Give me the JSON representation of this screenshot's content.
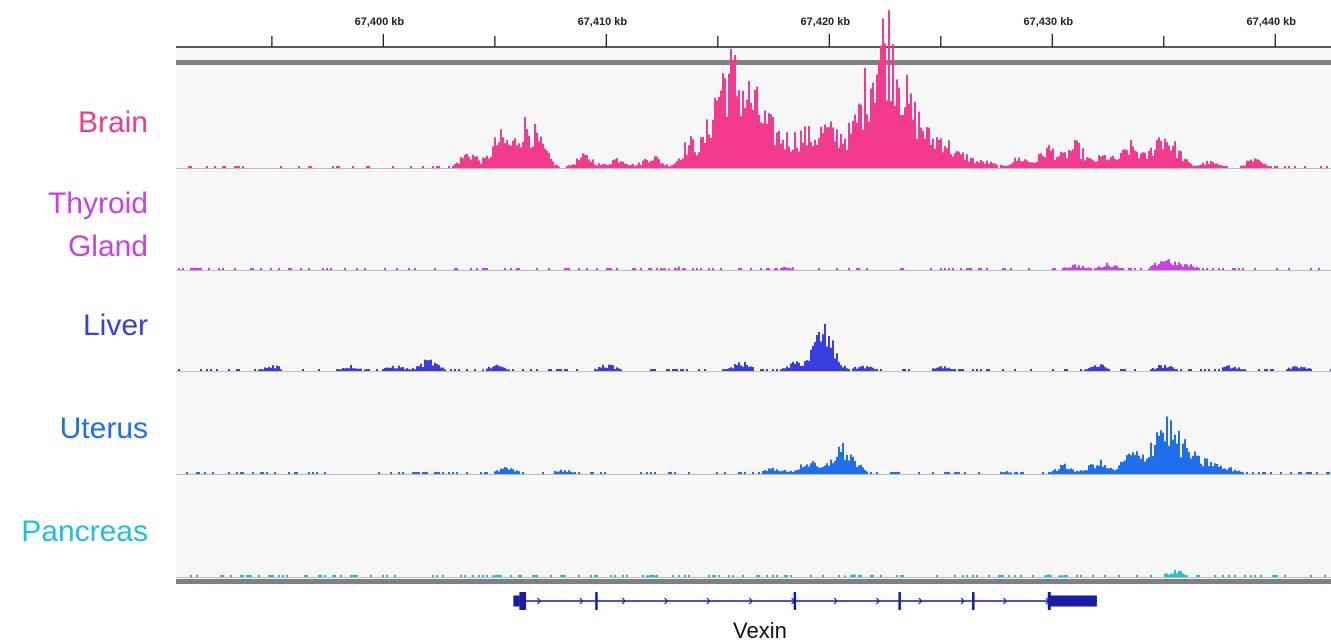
{
  "ruler": {
    "ticks": [
      {
        "label": "67,400 kb",
        "kb": 67400
      },
      {
        "label": "67,410 kb",
        "kb": 67410
      },
      {
        "label": "67,420 kb",
        "kb": 67420
      },
      {
        "label": "67,430 kb",
        "kb": 67430
      },
      {
        "label": "67,440 kb",
        "kb": 67440
      }
    ]
  },
  "tracks": [
    {
      "id": "brain",
      "label_lines": [
        "Brain"
      ],
      "color": "#f23a8e",
      "peaks": [
        [
          67403.8,
          0.15
        ],
        [
          67405.2,
          0.3
        ],
        [
          67406.3,
          0.4
        ],
        [
          67407.0,
          0.18
        ],
        [
          67409.0,
          0.12
        ],
        [
          67410.5,
          0.1
        ],
        [
          67412.0,
          0.12
        ],
        [
          67413.7,
          0.25
        ],
        [
          67414.8,
          0.45
        ],
        [
          67415.4,
          0.72
        ],
        [
          67416.0,
          0.5
        ],
        [
          67416.6,
          0.48
        ],
        [
          67417.3,
          0.3
        ],
        [
          67418.0,
          0.22
        ],
        [
          67418.8,
          0.3
        ],
        [
          67419.7,
          0.35
        ],
        [
          67420.5,
          0.28
        ],
        [
          67421.4,
          0.45
        ],
        [
          67422.0,
          0.7
        ],
        [
          67422.6,
          0.98
        ],
        [
          67423.2,
          0.6
        ],
        [
          67424.0,
          0.42
        ],
        [
          67425.0,
          0.3
        ],
        [
          67426.0,
          0.12
        ],
        [
          67427.0,
          0.06
        ],
        [
          67428.5,
          0.1
        ],
        [
          67429.8,
          0.2
        ],
        [
          67431.0,
          0.22
        ],
        [
          67432.3,
          0.12
        ],
        [
          67433.5,
          0.22
        ],
        [
          67434.8,
          0.3
        ],
        [
          67435.5,
          0.15
        ],
        [
          67437.0,
          0.06
        ],
        [
          67439.0,
          0.08
        ]
      ]
    },
    {
      "id": "thyroid",
      "label_lines": [
        "Thyroid",
        "Gland"
      ],
      "color": "#c841e8",
      "peaks": [
        [
          67413.0,
          0.03
        ],
        [
          67418.0,
          0.03
        ],
        [
          67431.0,
          0.05
        ],
        [
          67432.5,
          0.06
        ],
        [
          67435.0,
          0.11
        ],
        [
          67436.0,
          0.05
        ]
      ]
    },
    {
      "id": "liver",
      "label_lines": [
        "Liver"
      ],
      "color": "#3a3ee0",
      "peaks": [
        [
          67395.0,
          0.05
        ],
        [
          67398.5,
          0.05
        ],
        [
          67400.5,
          0.05
        ],
        [
          67402.0,
          0.1
        ],
        [
          67405.0,
          0.05
        ],
        [
          67410.0,
          0.06
        ],
        [
          67416.0,
          0.08
        ],
        [
          67418.5,
          0.08
        ],
        [
          67419.6,
          0.32
        ],
        [
          67420.0,
          0.12
        ],
        [
          67421.5,
          0.05
        ],
        [
          67425.0,
          0.04
        ],
        [
          67432.0,
          0.06
        ],
        [
          67435.0,
          0.06
        ],
        [
          67438.0,
          0.05
        ],
        [
          67441.0,
          0.05
        ]
      ]
    },
    {
      "id": "uterus",
      "label_lines": [
        "Uterus"
      ],
      "color": "#1f6fea",
      "peaks": [
        [
          67405.5,
          0.06
        ],
        [
          67408.0,
          0.04
        ],
        [
          67417.5,
          0.06
        ],
        [
          67419.0,
          0.12
        ],
        [
          67420.4,
          0.22
        ],
        [
          67421.0,
          0.1
        ],
        [
          67428.0,
          0.03
        ],
        [
          67430.5,
          0.08
        ],
        [
          67432.0,
          0.12
        ],
        [
          67433.5,
          0.2
        ],
        [
          67434.6,
          0.3
        ],
        [
          67435.2,
          0.36
        ],
        [
          67436.0,
          0.22
        ],
        [
          67437.0,
          0.12
        ],
        [
          67438.0,
          0.05
        ]
      ]
    },
    {
      "id": "pancreas",
      "label_lines": [
        "Pancreas"
      ],
      "color": "#1ec0e0",
      "peaks": [
        [
          67405.0,
          0.02
        ],
        [
          67412.0,
          0.02
        ],
        [
          67421.0,
          0.02
        ],
        [
          67430.0,
          0.025
        ],
        [
          67435.5,
          0.06
        ]
      ]
    }
  ],
  "gene": {
    "name": "Vexin",
    "color": "#1a1aa8",
    "start_kb": 67406.1,
    "end_kb": 67432.0,
    "exons_kb": [
      [
        67406.1,
        67406.4
      ],
      [
        67409.5,
        67409.6
      ],
      [
        67418.4,
        67418.5
      ],
      [
        67423.1,
        67423.2
      ],
      [
        67426.4,
        67426.5
      ],
      [
        67429.8,
        67432.0
      ]
    ]
  }
}
